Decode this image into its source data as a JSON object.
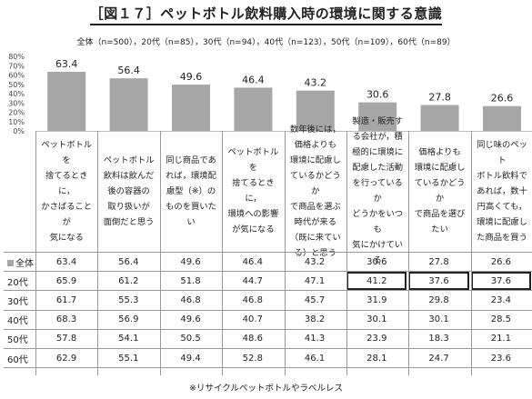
{
  "title": "［図１７］ペットボトル飲料購入時の環境に関する意識",
  "subtitle": "全体（n=500），20代（n=85），30代（n=94），40代（n=123），50代（n=109），60代（n=89）",
  "note": "※リサイクルペットボトルやラベルレス",
  "chart_data": {
    "type": "bar",
    "ylim": [
      0,
      80
    ],
    "yticks": [
      "80%",
      "70%",
      "60%",
      "50%",
      "40%",
      "30%",
      "20%",
      "10%",
      "0%"
    ],
    "bar_color": "#a6a6a6",
    "categories": [
      "ペットボトルを\n捨てるときに，\nかさばることが\n気になる",
      "ペットボトル\n飲料は飲んだ\n後の容器の\n取り扱いが\n面倒だと思う",
      "同じ商品であ\nれば，環境配\n慮型（※）の\nものを買いたい",
      "ペットボトルを\n捨てるときに，\n環境への影響\nが気になる",
      "数年後には，\n価格よりも\n環境に配慮し\nているかどうか\nで商品を選ぶ\n時代が来る\n（既に来てい\nる）と思う",
      "製造・販売す\nる会社が，積\n極的に環境に\n配慮した活動\nを行っているか\nどうかをいつも\n気にかけている",
      "価格よりも\n環境に配慮し\nているかどうか\nで商品を選び\nたい",
      "同じ味のペット\nボトル飲料で\nあれば，数十\n円高くても，\n環境に配慮し\nた商品を買う"
    ],
    "bar_values": [
      "63.4",
      "56.4",
      "49.6",
      "46.4",
      "43.2",
      "30.6",
      "27.8",
      "26.6"
    ],
    "table": {
      "rows": [
        {
          "label": "全体",
          "legend": true,
          "values": [
            "63.4",
            "56.4",
            "49.6",
            "46.4",
            "43.2",
            "30.6",
            "27.8",
            "26.6"
          ]
        },
        {
          "label": "20代",
          "values": [
            "65.9",
            "61.2",
            "51.8",
            "44.7",
            "47.1",
            "41.2",
            "37.6",
            "37.6"
          ],
          "highlight": [
            5,
            6,
            7
          ]
        },
        {
          "label": "30代",
          "values": [
            "61.7",
            "55.3",
            "46.8",
            "46.8",
            "45.7",
            "31.9",
            "29.8",
            "23.4"
          ]
        },
        {
          "label": "40代",
          "values": [
            "68.3",
            "56.9",
            "49.6",
            "40.7",
            "38.2",
            "30.1",
            "30.1",
            "28.5"
          ]
        },
        {
          "label": "50代",
          "values": [
            "57.8",
            "54.1",
            "50.5",
            "48.6",
            "41.3",
            "23.9",
            "18.3",
            "21.1"
          ]
        },
        {
          "label": "60代",
          "values": [
            "62.9",
            "55.1",
            "49.4",
            "52.8",
            "46.1",
            "28.1",
            "24.7",
            "23.6"
          ]
        }
      ]
    }
  }
}
